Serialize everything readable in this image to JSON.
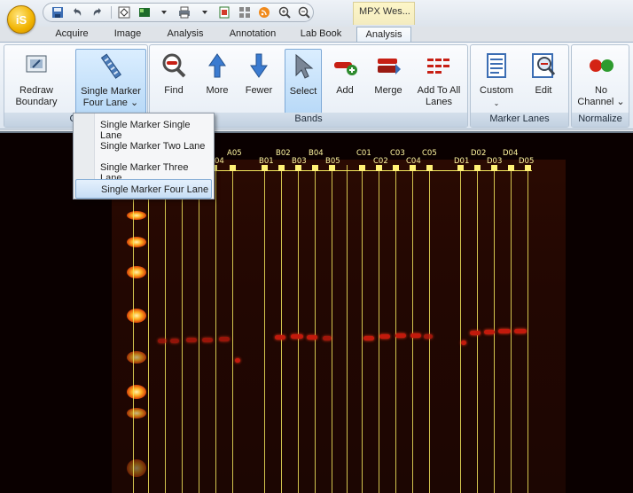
{
  "app": {
    "logo_text": "iS",
    "context_tab_title": "MPX Wes..."
  },
  "quick_access": [
    "save-icon",
    "undo-icon",
    "redo-icon",
    "target-icon",
    "display-icon",
    "print-icon",
    "report-icon",
    "grid-icon",
    "rss-icon",
    "zoom-in-icon",
    "zoom-out-icon"
  ],
  "tabs": [
    {
      "label": "Acquire"
    },
    {
      "label": "Image"
    },
    {
      "label": "Analysis"
    },
    {
      "label": "Annotation"
    },
    {
      "label": "Lab Book"
    },
    {
      "label": "Analysis",
      "active": true
    }
  ],
  "ribbon": {
    "redraw": {
      "line1": "Redraw",
      "line2": "Boundary"
    },
    "single_marker": {
      "line1": "Single Marker",
      "line2": "Four Lane"
    },
    "find": "Find",
    "more": "More",
    "fewer": "Fewer",
    "select": "Select",
    "add": "Add",
    "merge": "Merge",
    "add_to_all": {
      "line1": "Add To All",
      "line2": "Lanes"
    },
    "custom": "Custom",
    "edit": "Edit",
    "no_channel": {
      "line1": "No",
      "line2": "Channel"
    },
    "groups": {
      "lanes": "Co",
      "bands": "Bands",
      "marker_lanes": "Marker Lanes",
      "normalize": "Normalize"
    }
  },
  "dropdown": {
    "items": [
      {
        "label": "Single Marker Single Lane",
        "highlighted": false
      },
      {
        "label": "Single Marker Two Lane",
        "highlighted": false
      },
      {
        "label": "Single Marker Three Lane",
        "highlighted": false
      },
      {
        "label": "Single Marker Four Lane",
        "highlighted": true
      }
    ]
  },
  "lane_labels": {
    "a": [
      "A05",
      "04"
    ],
    "b": [
      "B01",
      "B02",
      "B03",
      "B04",
      "B05"
    ],
    "c": [
      "C01",
      "C02",
      "C03",
      "C04",
      "C05"
    ],
    "d": [
      "D01",
      "D02",
      "D03",
      "D04",
      "D05"
    ]
  },
  "colors": {
    "lane_line": "#f2e55c",
    "band": "#c21a0c",
    "accent": "#7ea9d6"
  }
}
